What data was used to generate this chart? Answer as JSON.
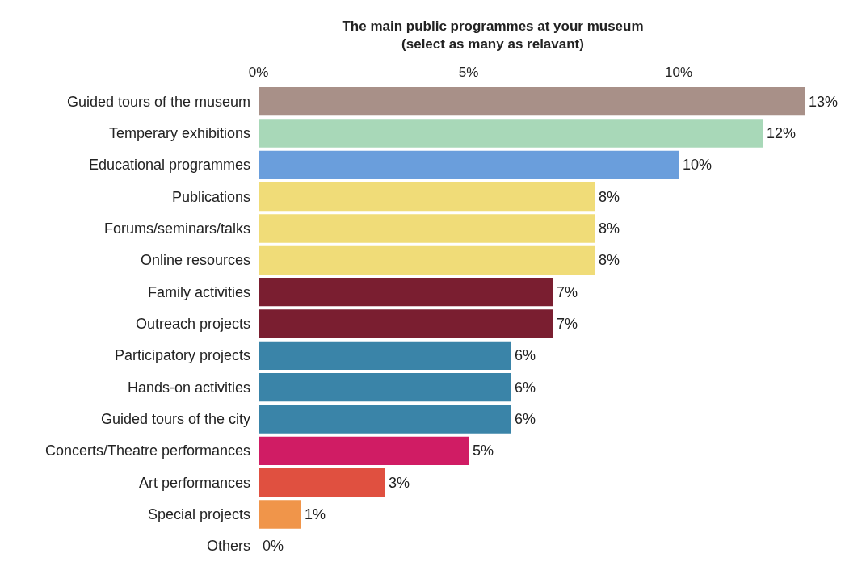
{
  "chart_data": {
    "type": "bar",
    "orientation": "horizontal",
    "title": "The main public programmes at your museum\n(select as many as relavant)",
    "categories": [
      "Guided tours of the museum",
      "Temperary exhibitions",
      "Educational programmes",
      "Publications",
      "Forums/seminars/talks",
      "Online resources",
      "Family activities",
      "Outreach projects",
      "Participatory projects",
      "Hands-on activities",
      "Guided tours of the city",
      "Concerts/Theatre performances",
      "Art performances",
      "Special projects",
      "Others"
    ],
    "values": [
      13,
      12,
      10,
      8,
      8,
      8,
      7,
      7,
      6,
      6,
      6,
      5,
      3,
      1,
      0
    ],
    "value_labels": [
      "13%",
      "12%",
      "10%",
      "8%",
      "8%",
      "8%",
      "7%",
      "7%",
      "6%",
      "6%",
      "6%",
      "5%",
      "3%",
      "1%",
      "0%"
    ],
    "colors": [
      "#a89088",
      "#a8d8b8",
      "#6a9edc",
      "#f0dc78",
      "#f0dc78",
      "#f0dc78",
      "#7a1e30",
      "#7a1e30",
      "#3a84a8",
      "#3a84a8",
      "#3a84a8",
      "#d01c64",
      "#e05040",
      "#f0954a",
      "#f0954a"
    ],
    "xlim": [
      0,
      13
    ],
    "xticks": [
      {
        "value": 0,
        "label": "0%"
      },
      {
        "value": 5,
        "label": "5%"
      },
      {
        "value": 10,
        "label": "10%"
      }
    ],
    "grid": "x"
  }
}
